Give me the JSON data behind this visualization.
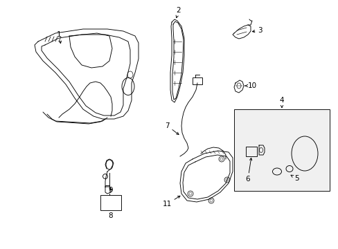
{
  "background_color": "#ffffff",
  "line_color": "#000000",
  "fig_width": 4.89,
  "fig_height": 3.6,
  "dpi": 100,
  "fontsize": 7.5,
  "lw": 0.65
}
